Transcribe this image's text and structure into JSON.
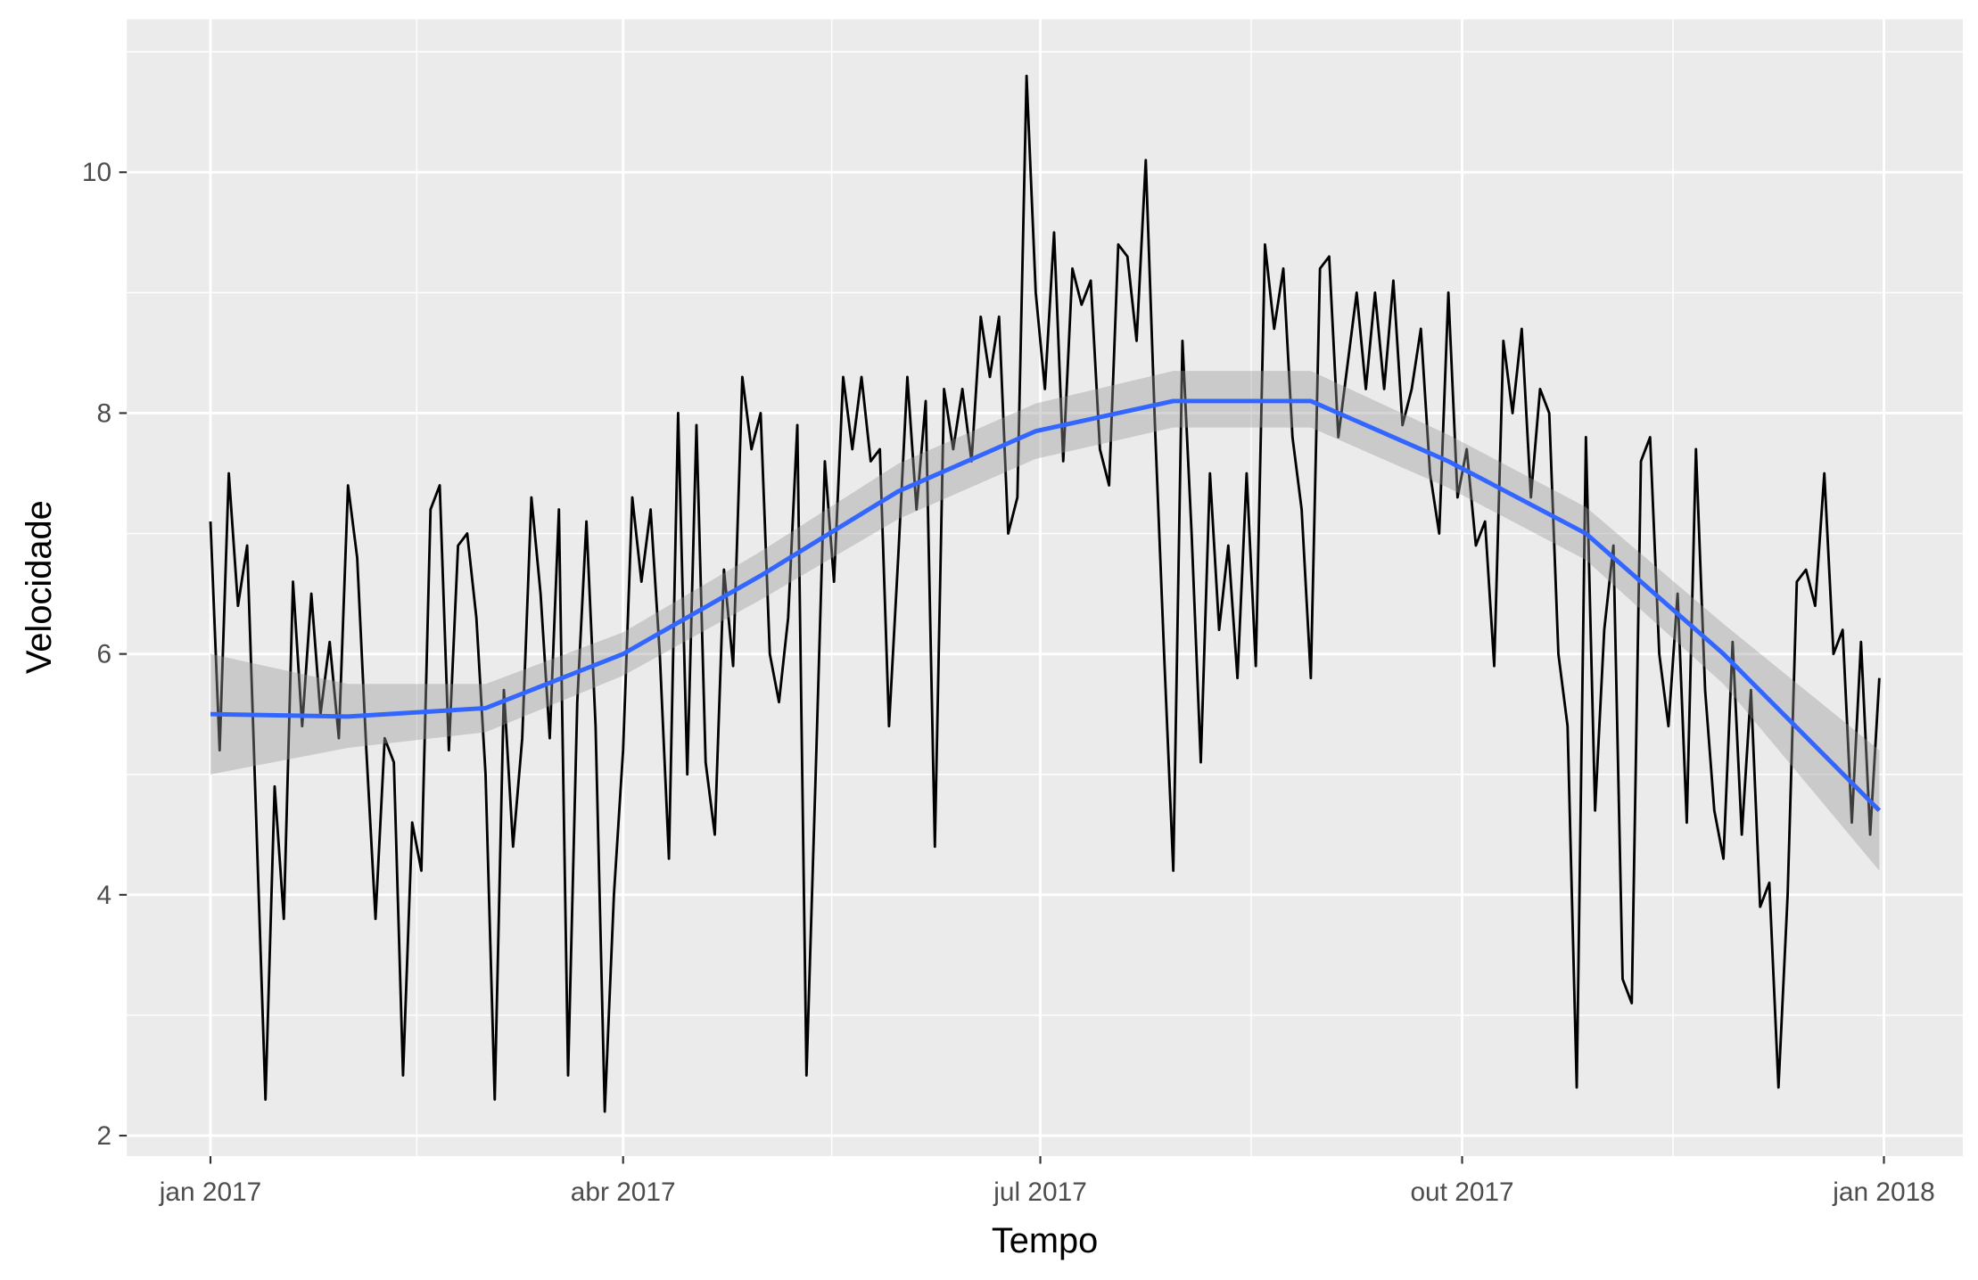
{
  "chart_data": {
    "type": "line",
    "x_label": "Tempo",
    "y_label": "Velocidade",
    "x": [
      0,
      2,
      4,
      6,
      8,
      10,
      12,
      14,
      16,
      18,
      20,
      22,
      24,
      26,
      28,
      30,
      32,
      34,
      36,
      38,
      40,
      42,
      44,
      46,
      48,
      50,
      52,
      54,
      56,
      58,
      60,
      62,
      64,
      66,
      68,
      70,
      72,
      74,
      76,
      78,
      80,
      82,
      84,
      86,
      88,
      90,
      92,
      94,
      96,
      98,
      100,
      102,
      104,
      106,
      108,
      110,
      112,
      114,
      116,
      118,
      120,
      122,
      124,
      126,
      128,
      130,
      132,
      134,
      136,
      138,
      140,
      142,
      144,
      146,
      148,
      150,
      152,
      154,
      156,
      158,
      160,
      162,
      164,
      166,
      168,
      170,
      172,
      174,
      176,
      178,
      180,
      182,
      184,
      186,
      188,
      190,
      192,
      194,
      196,
      198,
      200,
      202,
      204,
      206,
      208,
      210,
      212,
      214,
      216,
      218,
      220,
      222,
      224,
      226,
      228,
      230,
      232,
      234,
      236,
      238,
      240,
      242,
      244,
      246,
      248,
      250,
      252,
      254,
      256,
      258,
      260,
      262,
      264,
      266,
      268,
      270,
      272,
      274,
      276,
      278,
      280,
      282,
      284,
      286,
      288,
      290,
      292,
      294,
      296,
      298,
      300,
      302,
      304,
      306,
      308,
      310,
      312,
      314,
      316,
      318,
      320,
      322,
      324,
      326,
      328,
      330,
      332,
      334,
      336,
      338,
      340,
      342,
      344,
      346,
      348,
      350,
      352,
      354,
      356,
      358,
      360,
      362,
      364
    ],
    "values": [
      7.1,
      5.2,
      7.5,
      6.4,
      6.9,
      4.6,
      2.3,
      4.9,
      3.8,
      6.6,
      5.4,
      6.5,
      5.5,
      6.1,
      5.3,
      7.4,
      6.8,
      5.2,
      3.8,
      5.3,
      5.1,
      2.5,
      4.6,
      4.2,
      7.2,
      7.4,
      5.2,
      6.9,
      7.0,
      6.3,
      5.0,
      2.3,
      5.7,
      4.4,
      5.3,
      7.3,
      6.5,
      5.3,
      7.2,
      2.5,
      5.6,
      7.1,
      5.4,
      2.2,
      4.0,
      5.2,
      7.3,
      6.6,
      7.2,
      6.0,
      4.3,
      8.0,
      5.0,
      7.9,
      5.1,
      4.5,
      6.7,
      5.9,
      8.3,
      7.7,
      8.0,
      6.0,
      5.6,
      6.3,
      7.9,
      2.5,
      5.0,
      7.6,
      6.6,
      8.3,
      7.7,
      8.3,
      7.6,
      7.7,
      5.4,
      6.8,
      8.3,
      7.2,
      8.1,
      4.4,
      8.2,
      7.7,
      8.2,
      7.6,
      8.8,
      8.3,
      8.8,
      7.0,
      7.3,
      10.8,
      9.0,
      8.2,
      9.5,
      7.6,
      9.2,
      8.9,
      9.1,
      7.7,
      7.4,
      9.4,
      9.3,
      8.6,
      10.1,
      7.9,
      6.0,
      4.2,
      8.6,
      7.0,
      5.1,
      7.5,
      6.2,
      6.9,
      5.8,
      7.5,
      5.9,
      9.4,
      8.7,
      9.2,
      7.8,
      7.2,
      5.8,
      9.2,
      9.3,
      7.8,
      8.4,
      9.0,
      8.2,
      9.0,
      8.2,
      9.1,
      7.9,
      8.2,
      8.7,
      7.5,
      7.0,
      9.0,
      7.3,
      7.7,
      6.9,
      7.1,
      5.9,
      8.6,
      8.0,
      8.7,
      7.3,
      8.2,
      8.0,
      6.0,
      5.4,
      2.4,
      7.8,
      4.7,
      6.2,
      6.9,
      3.3,
      3.1,
      7.6,
      7.8,
      6.0,
      5.4,
      6.5,
      4.6,
      7.7,
      5.7,
      4.7,
      4.3,
      6.1,
      4.5,
      5.7,
      3.9,
      4.1,
      2.4,
      4.0,
      6.6,
      6.7,
      6.4,
      7.5,
      6.0,
      6.2,
      4.6,
      6.1,
      4.5,
      5.8
    ],
    "color": "#000000",
    "smooth": {
      "x": [
        0,
        30,
        60,
        90,
        120,
        150,
        180,
        210,
        240,
        270,
        300,
        330,
        364
      ],
      "values": [
        5.5,
        5.48,
        5.55,
        6.0,
        6.65,
        7.35,
        7.85,
        8.1,
        8.1,
        7.6,
        7.0,
        6.0,
        4.7
      ],
      "lower": [
        5.0,
        5.22,
        5.35,
        5.82,
        6.45,
        7.12,
        7.62,
        7.88,
        7.88,
        7.38,
        6.78,
        5.75,
        4.2
      ],
      "upper": [
        6.0,
        5.75,
        5.75,
        6.18,
        6.85,
        7.58,
        8.08,
        8.35,
        8.35,
        7.82,
        7.22,
        6.25,
        5.2
      ],
      "color": "#3366FF",
      "band_color": "#999999"
    },
    "xlim": [
      -18.25,
      382.2
    ],
    "ylim": [
      1.83,
      11.27
    ],
    "xticks": [
      {
        "value": 0,
        "label": "jan 2017"
      },
      {
        "value": 90,
        "label": "abr 2017"
      },
      {
        "value": 181,
        "label": "jul 2017"
      },
      {
        "value": 273,
        "label": "out 2017"
      },
      {
        "value": 365,
        "label": "jan 2018"
      }
    ],
    "yticks": [
      2,
      4,
      6,
      8,
      10
    ],
    "grid": true
  }
}
